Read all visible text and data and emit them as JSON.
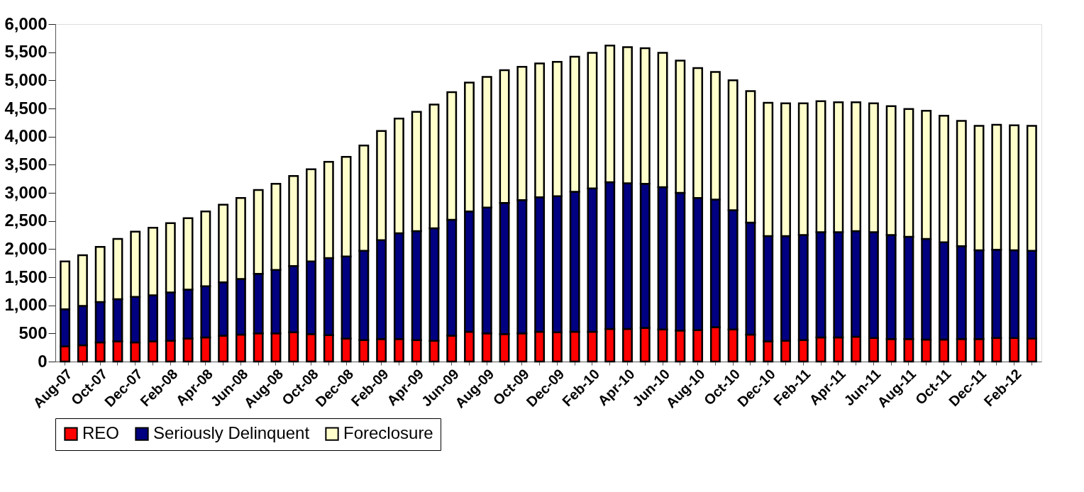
{
  "chart_data": {
    "type": "bar",
    "stacked": true,
    "categories": [
      "Aug-07",
      null,
      "Oct-07",
      null,
      "Dec-07",
      null,
      "Feb-08",
      null,
      "Apr-08",
      null,
      "Jun-08",
      null,
      "Aug-08",
      null,
      "Oct-08",
      null,
      "Dec-08",
      null,
      "Feb-09",
      null,
      "Apr-09",
      null,
      "Jun-09",
      null,
      "Aug-09",
      null,
      "Oct-09",
      null,
      "Dec-09",
      null,
      "Feb-10",
      null,
      "Apr-10",
      null,
      "Jun-10",
      null,
      "Aug-10",
      null,
      "Oct-10",
      null,
      "Dec-10",
      null,
      "Feb-11",
      null,
      "Apr-11",
      null,
      "Jun-11",
      null,
      "Aug-11",
      null,
      "Oct-11",
      null,
      "Dec-11",
      null,
      "Feb-12",
      null
    ],
    "series": [
      {
        "name": "REO",
        "color": "#ff0000",
        "values": [
          270,
          290,
          340,
          360,
          340,
          360,
          370,
          410,
          430,
          460,
          480,
          500,
          500,
          520,
          490,
          470,
          410,
          380,
          400,
          400,
          380,
          370,
          460,
          530,
          500,
          490,
          500,
          530,
          520,
          530,
          530,
          580,
          580,
          600,
          570,
          550,
          560,
          610,
          570,
          480,
          360,
          370,
          380,
          430,
          430,
          440,
          420,
          400,
          400,
          390,
          390,
          400,
          400,
          420,
          420,
          410
        ]
      },
      {
        "name": "Seriously Delinquent",
        "color": "#000080",
        "values": [
          660,
          700,
          720,
          750,
          810,
          820,
          860,
          870,
          910,
          950,
          990,
          1060,
          1130,
          1180,
          1290,
          1370,
          1460,
          1590,
          1760,
          1880,
          1940,
          2000,
          2060,
          2140,
          2240,
          2330,
          2370,
          2390,
          2420,
          2490,
          2550,
          2610,
          2590,
          2560,
          2530,
          2450,
          2350,
          2270,
          2120,
          1990,
          1870,
          1860,
          1870,
          1870,
          1870,
          1880,
          1880,
          1850,
          1820,
          1790,
          1730,
          1650,
          1580,
          1570,
          1560,
          1560
        ]
      },
      {
        "name": "Foreclosure",
        "color": "#ffffcc",
        "values": [
          850,
          900,
          980,
          1070,
          1160,
          1200,
          1230,
          1270,
          1330,
          1380,
          1440,
          1490,
          1530,
          1600,
          1640,
          1710,
          1770,
          1870,
          1940,
          2040,
          2120,
          2200,
          2270,
          2290,
          2320,
          2360,
          2370,
          2380,
          2390,
          2400,
          2410,
          2430,
          2420,
          2410,
          2390,
          2350,
          2310,
          2270,
          2310,
          2340,
          2370,
          2360,
          2340,
          2330,
          2310,
          2290,
          2290,
          2290,
          2270,
          2280,
          2250,
          2230,
          2210,
          2220,
          2220,
          2220
        ]
      }
    ],
    "ylim": [
      0,
      6000
    ],
    "yticks": [
      {
        "value": 0,
        "label": "0"
      },
      {
        "value": 500,
        "label": "500"
      },
      {
        "value": 1000,
        "label": "1,000"
      },
      {
        "value": 1500,
        "label": "1,500"
      },
      {
        "value": 2000,
        "label": "2,000"
      },
      {
        "value": 2500,
        "label": "2,500"
      },
      {
        "value": 3000,
        "label": "3,000"
      },
      {
        "value": 3500,
        "label": "3,500"
      },
      {
        "value": 4000,
        "label": "4,000"
      },
      {
        "value": 4500,
        "label": "4,500"
      },
      {
        "value": 5000,
        "label": "5,000"
      },
      {
        "value": 5500,
        "label": "5,500"
      },
      {
        "value": 6000,
        "label": "6,000"
      }
    ],
    "grid": false,
    "legend": "bottom"
  }
}
